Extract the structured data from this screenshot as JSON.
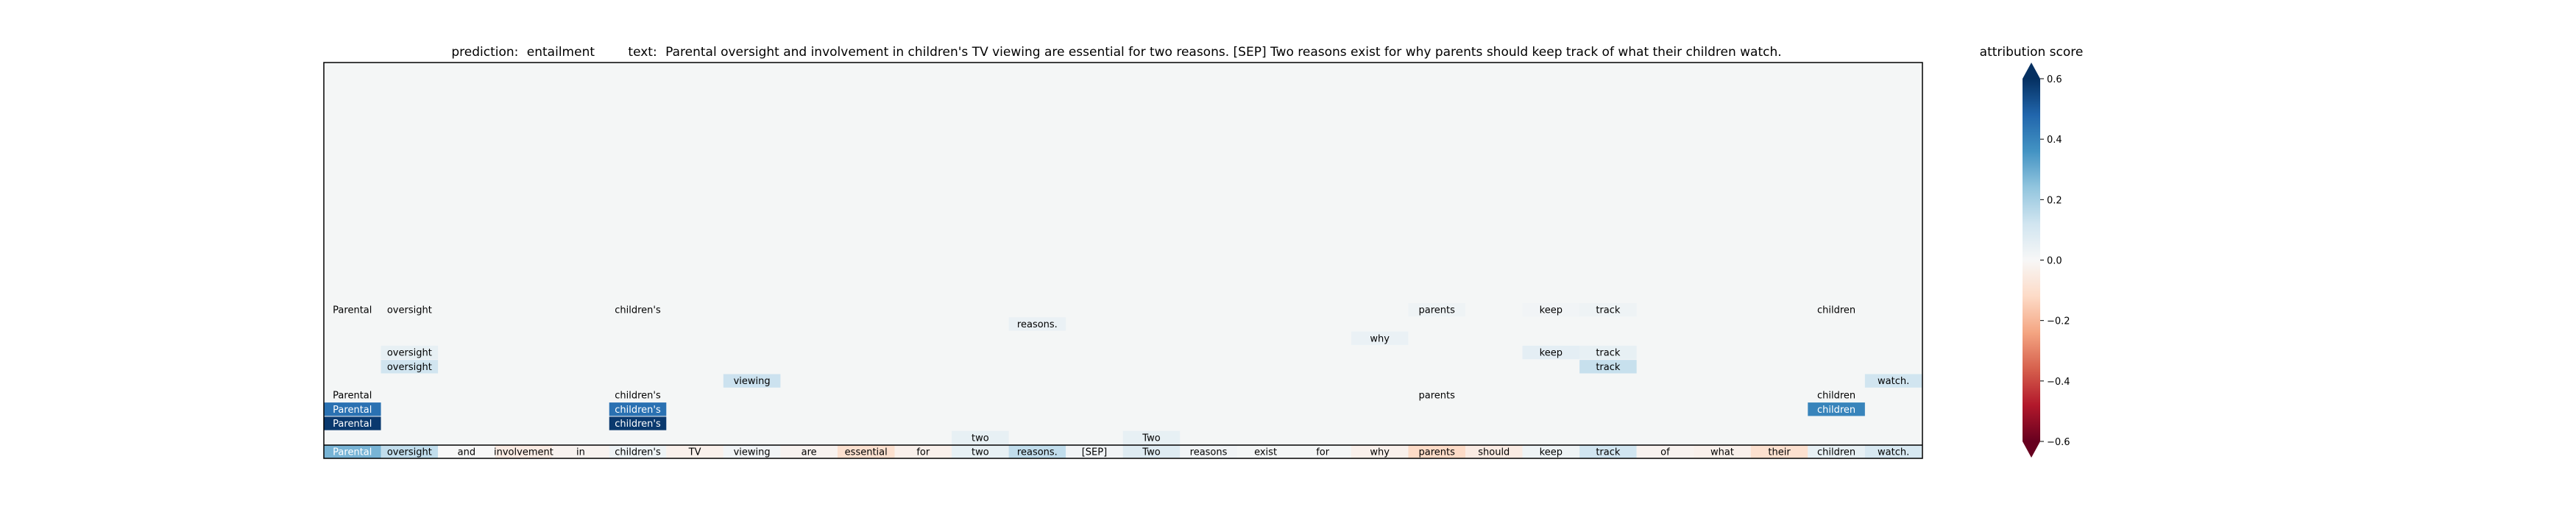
{
  "title": {
    "prediction_label": "prediction:",
    "prediction_value": "entailment",
    "text_label": "text:",
    "text_value": "Parental oversight and involvement in children's TV viewing are essential for two reasons. [SEP] Two reasons exist for why parents should keep track of what their children watch."
  },
  "chart_data": {
    "type": "heatmap",
    "xlabel": "",
    "ylabel": "",
    "tokens": [
      "Parental",
      "oversight",
      "and",
      "involvement",
      "in",
      "children's",
      "TV",
      "viewing",
      "are",
      "essential",
      "for",
      "two",
      "reasons.",
      "[SEP]",
      "Two",
      "reasons",
      "exist",
      "for",
      "why",
      "parents",
      "should",
      "keep",
      "track",
      "of",
      "what",
      "their",
      "children",
      "watch."
    ],
    "base_row_scores": [
      0.28,
      0.15,
      0.0,
      -0.05,
      -0.02,
      0.03,
      -0.03,
      0.02,
      -0.02,
      -0.1,
      -0.03,
      0.05,
      0.15,
      0.02,
      0.08,
      0.02,
      0.01,
      0.01,
      -0.03,
      -0.12,
      -0.05,
      0.03,
      0.12,
      -0.02,
      -0.03,
      -0.1,
      0.05,
      0.1
    ],
    "rows": [
      [
        {
          "token_index": 0,
          "score": 0.01
        },
        {
          "token_index": 1,
          "score": 0.01
        },
        {
          "token_index": 5,
          "score": 0.01
        },
        {
          "token_index": 19,
          "score": 0.03
        },
        {
          "token_index": 21,
          "score": 0.02
        },
        {
          "token_index": 22,
          "score": 0.03
        },
        {
          "token_index": 26,
          "score": 0.01
        }
      ],
      [
        {
          "token_index": 12,
          "score": 0.04
        }
      ],
      [
        {
          "token_index": 18,
          "score": 0.04
        }
      ],
      [
        {
          "token_index": 1,
          "score": 0.05
        },
        {
          "token_index": 21,
          "score": 0.06
        },
        {
          "token_index": 22,
          "score": 0.05
        }
      ],
      [
        {
          "token_index": 1,
          "score": 0.12
        },
        {
          "token_index": 22,
          "score": 0.14
        }
      ],
      [
        {
          "token_index": 7,
          "score": 0.13
        },
        {
          "token_index": 27,
          "score": 0.12
        }
      ],
      [
        {
          "token_index": 0,
          "score": 0.01
        },
        {
          "token_index": 5,
          "score": 0.01
        },
        {
          "token_index": 19,
          "score": 0.01
        },
        {
          "token_index": 26,
          "score": 0.01
        }
      ],
      [
        {
          "token_index": 0,
          "score": 0.45
        },
        {
          "token_index": 5,
          "score": 0.45
        },
        {
          "token_index": 26,
          "score": 0.4
        }
      ],
      [
        {
          "token_index": 0,
          "score": 0.58
        },
        {
          "token_index": 5,
          "score": 0.58
        }
      ],
      [
        {
          "token_index": 11,
          "score": 0.05
        },
        {
          "token_index": 14,
          "score": 0.05
        }
      ]
    ],
    "colorbar": {
      "label": "attribution score",
      "min": -0.6,
      "max": 0.6,
      "ticks": [
        0.6,
        0.4,
        0.2,
        0.0,
        -0.2,
        -0.4,
        -0.6
      ],
      "tick_labels": [
        "0.6",
        "0.4",
        "0.2",
        "0.0",
        "−0.2",
        "−0.4",
        "−0.6"
      ],
      "colormap": "RdBu"
    }
  }
}
